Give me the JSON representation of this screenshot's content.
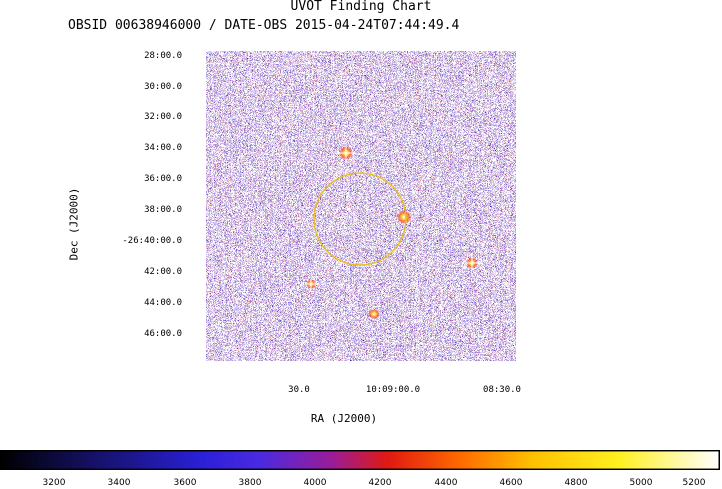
{
  "header": {
    "title": "UVOT Finding Chart",
    "subtitle": "OBSID 00638946000 / DATE-OBS 2015-04-24T07:44:49.4"
  },
  "axes": {
    "y_label": "Dec (J2000)",
    "x_label": "RA (J2000)",
    "y_ticks": [
      "28:00.0",
      "30:00.0",
      "32:00.0",
      "34:00.0",
      "36:00.0",
      "38:00.0",
      "-26:40:00.0",
      "42:00.0",
      "44:00.0",
      "46:00.0"
    ],
    "x_ticks": [
      "30.0",
      "10:09:00.0",
      "08:30.0"
    ]
  },
  "colorbar": {
    "ticks": [
      "3200",
      "3400",
      "3600",
      "3800",
      "4000",
      "4200",
      "4400",
      "4600",
      "4800",
      "5000",
      "5200"
    ]
  },
  "colors": {
    "circle": "#e8c020",
    "map_blue": "#2a1fd0",
    "map_red": "#c81e1e"
  }
}
